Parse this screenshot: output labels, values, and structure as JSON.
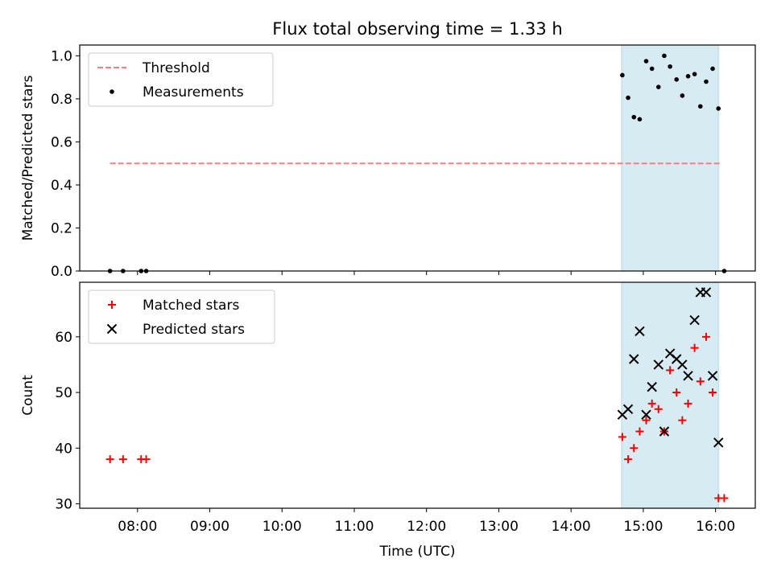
{
  "chart_data": [
    {
      "type": "scatter",
      "title": "Flux total observing time = 1.33 h",
      "xlabel": "",
      "ylabel": "Matched/Predicted stars",
      "xlim": [
        7.2,
        16.55
      ],
      "ylim": [
        0.0,
        1.05
      ],
      "yticks": [
        0.0,
        0.2,
        0.4,
        0.6,
        0.8,
        1.0
      ],
      "ytick_labels": [
        "0.0",
        "0.2",
        "0.4",
        "0.6",
        "0.8",
        "1.0"
      ],
      "shaded_region": {
        "x0": 14.7,
        "x1": 16.04,
        "color": "#add8e6"
      },
      "threshold": {
        "name": "Threshold",
        "y": 0.5,
        "x0": 7.62,
        "x1": 16.08,
        "color": "#ff7a7a"
      },
      "series": [
        {
          "name": "Measurements",
          "marker": "dot",
          "color": "#000000",
          "points": [
            [
              7.62,
              0.0
            ],
            [
              7.8,
              0.0
            ],
            [
              8.05,
              0.0
            ],
            [
              8.12,
              0.0
            ],
            [
              14.71,
              0.91
            ],
            [
              14.79,
              0.805
            ],
            [
              14.87,
              0.715
            ],
            [
              14.95,
              0.705
            ],
            [
              15.04,
              0.975
            ],
            [
              15.12,
              0.94
            ],
            [
              15.21,
              0.855
            ],
            [
              15.29,
              1.0
            ],
            [
              15.37,
              0.95
            ],
            [
              15.46,
              0.89
            ],
            [
              15.54,
              0.815
            ],
            [
              15.62,
              0.905
            ],
            [
              15.71,
              0.915
            ],
            [
              15.79,
              0.765
            ],
            [
              15.87,
              0.88
            ],
            [
              15.96,
              0.94
            ],
            [
              16.04,
              0.755
            ],
            [
              16.12,
              0.0
            ]
          ]
        }
      ],
      "legend": {
        "position": "upper-left",
        "entries": [
          "Threshold",
          "Measurements"
        ]
      }
    },
    {
      "type": "scatter",
      "title": "",
      "xlabel": "Time (UTC)",
      "ylabel": "Count",
      "xlim": [
        7.2,
        16.55
      ],
      "ylim": [
        29.2,
        69.8
      ],
      "yticks": [
        30,
        40,
        50,
        60
      ],
      "ytick_labels": [
        "30",
        "40",
        "50",
        "60"
      ],
      "xticks": [
        8,
        9,
        10,
        11,
        12,
        13,
        14,
        15,
        16
      ],
      "xtick_labels": [
        "08:00",
        "09:00",
        "10:00",
        "11:00",
        "12:00",
        "13:00",
        "14:00",
        "15:00",
        "16:00"
      ],
      "shaded_region": {
        "x0": 14.7,
        "x1": 16.04,
        "color": "#add8e6"
      },
      "series": [
        {
          "name": "Matched stars",
          "marker": "plus",
          "color": "#ff0000",
          "points": [
            [
              7.62,
              38
            ],
            [
              7.8,
              38
            ],
            [
              8.05,
              38
            ],
            [
              8.12,
              38
            ],
            [
              14.71,
              42
            ],
            [
              14.79,
              38
            ],
            [
              14.87,
              40
            ],
            [
              14.95,
              43
            ],
            [
              15.04,
              45
            ],
            [
              15.12,
              48
            ],
            [
              15.21,
              47
            ],
            [
              15.29,
              43
            ],
            [
              15.37,
              54
            ],
            [
              15.46,
              50
            ],
            [
              15.54,
              45
            ],
            [
              15.62,
              48
            ],
            [
              15.71,
              58
            ],
            [
              15.79,
              52
            ],
            [
              15.87,
              60
            ],
            [
              15.96,
              50
            ],
            [
              16.04,
              31
            ],
            [
              16.12,
              31
            ]
          ]
        },
        {
          "name": "Predicted stars",
          "marker": "x",
          "color": "#000000",
          "points": [
            [
              14.71,
              46
            ],
            [
              14.79,
              47
            ],
            [
              14.87,
              56
            ],
            [
              14.95,
              61
            ],
            [
              15.04,
              46
            ],
            [
              15.12,
              51
            ],
            [
              15.21,
              55
            ],
            [
              15.29,
              43
            ],
            [
              15.37,
              57
            ],
            [
              15.46,
              56
            ],
            [
              15.54,
              55
            ],
            [
              15.62,
              53
            ],
            [
              15.71,
              63
            ],
            [
              15.79,
              68
            ],
            [
              15.87,
              68
            ],
            [
              15.96,
              53
            ],
            [
              16.04,
              41
            ]
          ]
        }
      ],
      "legend": {
        "position": "upper-left",
        "entries": [
          "Matched stars",
          "Predicted stars"
        ]
      }
    }
  ]
}
